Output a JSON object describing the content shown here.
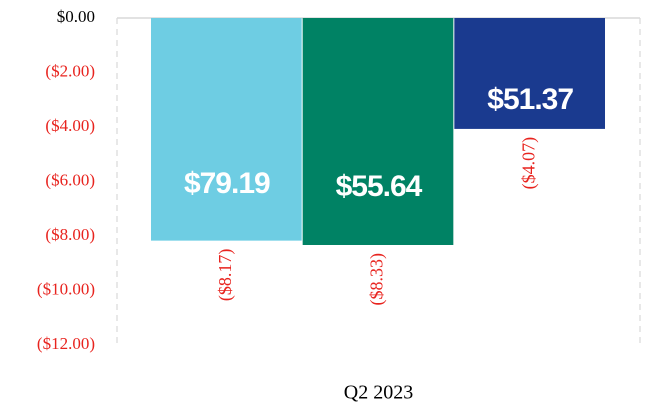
{
  "chart_data": {
    "type": "bar",
    "categories": [
      "Q2 2023"
    ],
    "series": [
      {
        "color": "#6ecde3",
        "values": [
          -8.17
        ],
        "value_labels": [
          "($8.17)"
        ],
        "annotation": "$79.19"
      },
      {
        "color": "#008264",
        "values": [
          -8.33
        ],
        "value_labels": [
          "($8.33)"
        ],
        "annotation": "$55.64"
      },
      {
        "color": "#1a3a8f",
        "values": [
          -4.07
        ],
        "value_labels": [
          "($4.07)"
        ],
        "annotation": "$51.37"
      }
    ],
    "ylim": [
      -12,
      0
    ],
    "yticks": [
      {
        "value": 0,
        "label": "$0.00"
      },
      {
        "value": -2,
        "label": "($2.00)"
      },
      {
        "value": -4,
        "label": "($4.00)"
      },
      {
        "value": -6,
        "label": "($6.00)"
      },
      {
        "value": -8,
        "label": "($8.00)"
      },
      {
        "value": -10,
        "label": "($10.00)"
      },
      {
        "value": -12,
        "label": "($12.00)"
      }
    ],
    "negative_color": "#e8231e"
  }
}
